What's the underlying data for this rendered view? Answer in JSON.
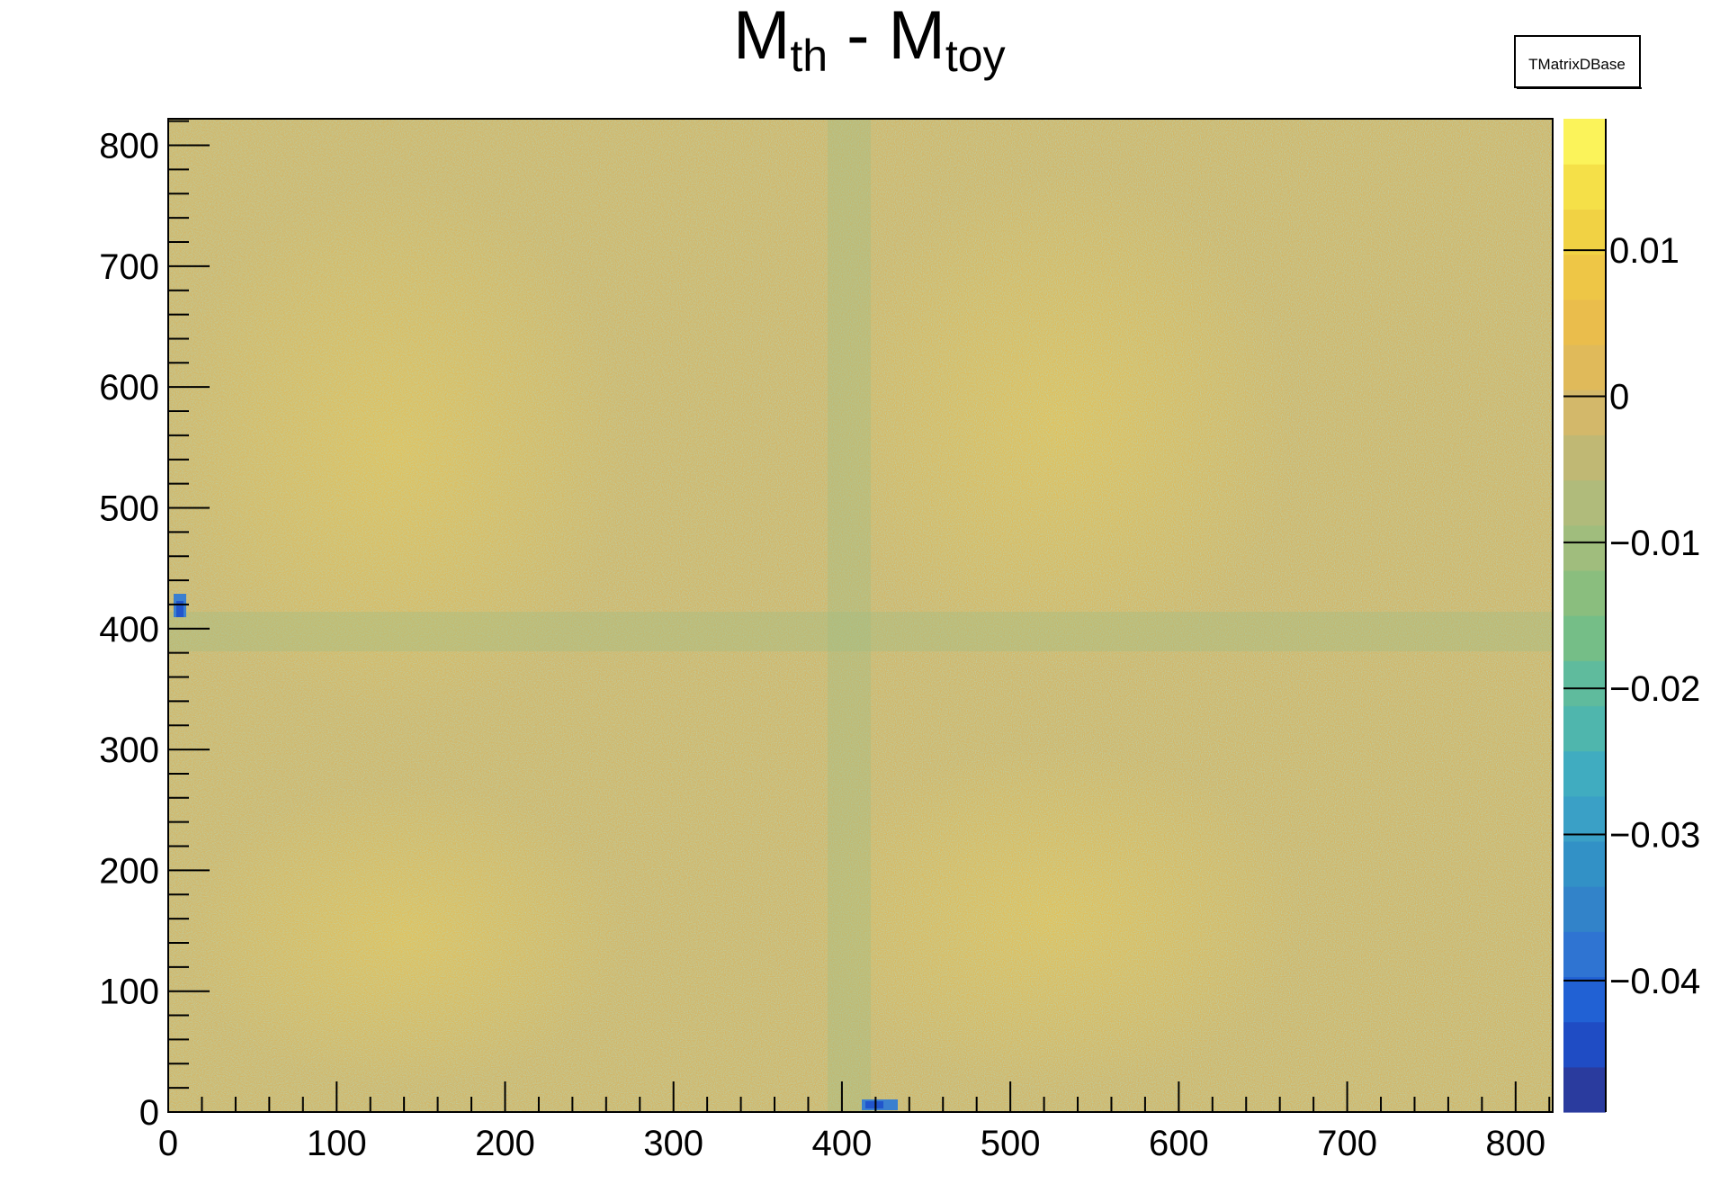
{
  "chart_data": {
    "type": "heatmap",
    "title_main": "M",
    "title_sub1": "th",
    "title_sep": " - M",
    "title_sub2": "toy",
    "stats_box_label": "TMatrixDBase",
    "xlim": [
      0,
      822
    ],
    "ylim": [
      0,
      822
    ],
    "x_ticks": [
      0,
      100,
      200,
      300,
      400,
      500,
      600,
      700,
      800
    ],
    "x_tick_labels": [
      "0",
      "100",
      "200",
      "300",
      "400",
      "500",
      "600",
      "700",
      "800"
    ],
    "y_ticks": [
      0,
      100,
      200,
      300,
      400,
      500,
      600,
      700,
      800
    ],
    "y_tick_labels": [
      "0",
      "100",
      "200",
      "300",
      "400",
      "500",
      "600",
      "700",
      "800"
    ],
    "zlim": [
      -0.049,
      0.019
    ],
    "z_ticks": [
      0.01,
      0,
      -0.01,
      -0.02,
      -0.03,
      -0.04
    ],
    "z_tick_labels": [
      "0.01",
      "0",
      "−0.01",
      "−0.02",
      "−0.03",
      "−0.04"
    ],
    "colorbar_colors": [
      "#2a3b9e",
      "#1f4cc4",
      "#2161d4",
      "#2f74d2",
      "#3283c9",
      "#3291c6",
      "#3aa0c6",
      "#40acc0",
      "#4fb6ad",
      "#5fbb9d",
      "#75be87",
      "#8abe7e",
      "#a0bd7d",
      "#b0bb7b",
      "#c0b874",
      "#d3b86a",
      "#e0ba5a",
      "#eabd4c",
      "#eec646",
      "#f1d244",
      "#f5e048",
      "#fbf35a"
    ],
    "features": [
      {
        "description": "dominant level",
        "value": 0.004
      },
      {
        "description": "cross band centred at index",
        "index": 410,
        "value": -0.004
      },
      {
        "description": "strong negative spot",
        "x": 414,
        "y": 5,
        "value": -0.045
      },
      {
        "description": "strong negative spot",
        "x": 5,
        "y": 414,
        "value": -0.045
      }
    ]
  }
}
